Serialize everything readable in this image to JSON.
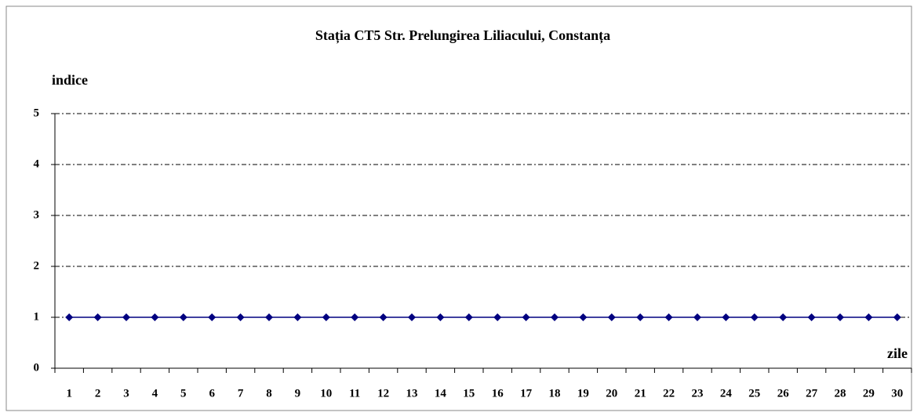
{
  "chart_data": {
    "type": "line",
    "title": "Stația CT5 Str. Prelungirea Liliacului, Constanța",
    "y_axis_label": "indice",
    "x_axis_label": "zile",
    "categories": [
      "1",
      "2",
      "3",
      "4",
      "5",
      "6",
      "7",
      "8",
      "9",
      "10",
      "11",
      "12",
      "13",
      "14",
      "15",
      "16",
      "17",
      "18",
      "19",
      "20",
      "21",
      "22",
      "23",
      "24",
      "25",
      "26",
      "27",
      "28",
      "29",
      "30"
    ],
    "series": [
      {
        "name": "indice",
        "color": "#000080",
        "values": [
          1,
          1,
          1,
          1,
          1,
          1,
          1,
          1,
          1,
          1,
          1,
          1,
          1,
          1,
          1,
          1,
          1,
          1,
          1,
          1,
          1,
          1,
          1,
          1,
          1,
          1,
          1,
          1,
          1,
          1
        ]
      }
    ],
    "ylim": [
      0,
      5
    ],
    "yticks": [
      0,
      1,
      2,
      3,
      4,
      5
    ],
    "grid": true
  }
}
